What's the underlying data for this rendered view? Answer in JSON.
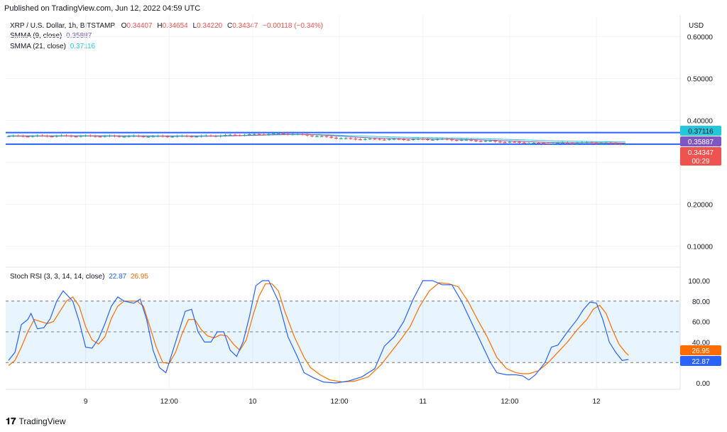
{
  "header": {
    "published": "Published on TradingView.com, Jun 12, 2022 04:59 UTC"
  },
  "symbol": {
    "name": "XRP / U.S. Dollar, 1h, BITSTAMP",
    "o_label": "O",
    "o": "0.34407",
    "h_label": "H",
    "h": "0.34654",
    "l_label": "L",
    "l": "0.34220",
    "c_label": "C",
    "c": "0.34347",
    "change": "−0.00118 (−0.34%)"
  },
  "indicators": {
    "smma9_label": "SMMA (9, close)",
    "smma9_value": "0.35887",
    "smma21_label": "SMMA (21, close)",
    "smma21_value": "0.37116",
    "stoch_label": "Stoch RSI (3, 3, 14, 14, close)",
    "stoch_k": "22.87",
    "stoch_d": "26.95"
  },
  "axis": {
    "currency": "USD"
  },
  "badges": {
    "smma21": "0.37116",
    "smma9": "0.35887",
    "price": "0.34347",
    "countdown": "00:29",
    "stoch_d": "26.95",
    "stoch_k": "22.87"
  },
  "footer": {
    "brand": "TradingView"
  },
  "colors": {
    "smma9": "#7e57c2",
    "smma21": "#26c6da",
    "stoch_k": "#2962ff",
    "stoch_d": "#ff6d00",
    "up": "#26a69a",
    "down": "#ef5350",
    "hline": "#2962ff"
  },
  "chart_data": [
    {
      "type": "candlestick",
      "title": "XRP / U.S. Dollar, 1h, BITSTAMP",
      "y_ticks": [
        "0.60000",
        "0.50000",
        "0.40000",
        "0.30000",
        "0.20000",
        "0.10000"
      ],
      "ylim": [
        0.05,
        0.65
      ],
      "x_ticks": [
        "9",
        "12:00",
        "10",
        "12:00",
        "11",
        "12:00",
        "12"
      ],
      "horizontal_lines": [
        0.371,
        0.3435
      ],
      "price_approx": [
        {
          "x": 0.0,
          "y": 0.3625
        },
        {
          "x": 0.5,
          "y": 0.363
        },
        {
          "x": 1.0,
          "y": 0.3625
        },
        {
          "x": 1.5,
          "y": 0.362
        },
        {
          "x": 2.0,
          "y": 0.3625
        },
        {
          "x": 2.5,
          "y": 0.3665
        },
        {
          "x": 2.8,
          "y": 0.369
        },
        {
          "x": 3.0,
          "y": 0.3665
        },
        {
          "x": 3.5,
          "y": 0.356
        },
        {
          "x": 4.0,
          "y": 0.355
        },
        {
          "x": 4.5,
          "y": 0.355
        },
        {
          "x": 5.0,
          "y": 0.35
        },
        {
          "x": 5.5,
          "y": 0.345
        },
        {
          "x": 6.0,
          "y": 0.347
        },
        {
          "x": 6.4,
          "y": 0.3435
        }
      ],
      "series": [
        {
          "name": "SMMA (9, close)",
          "last": 0.35887
        },
        {
          "name": "SMMA (21, close)",
          "last": 0.37116
        }
      ]
    },
    {
      "type": "line",
      "title": "Stoch RSI (3, 3, 14, 14, close)",
      "y_ticks": [
        "100.00",
        "80.00",
        "60.00",
        "40.00",
        "20.00",
        "0.00"
      ],
      "ylim": [
        0,
        100
      ],
      "bands": [
        20,
        50,
        80
      ],
      "series": [
        {
          "name": "%K",
          "points": [
            [
              0.0,
              22
            ],
            [
              0.1,
              30
            ],
            [
              0.2,
              57
            ],
            [
              0.3,
              62
            ],
            [
              0.35,
              68
            ],
            [
              0.45,
              53
            ],
            [
              0.55,
              54
            ],
            [
              0.65,
              63
            ],
            [
              0.75,
              80
            ],
            [
              0.85,
              90
            ],
            [
              1.0,
              80
            ],
            [
              1.1,
              60
            ],
            [
              1.2,
              35
            ],
            [
              1.3,
              34
            ],
            [
              1.4,
              43
            ],
            [
              1.5,
              58
            ],
            [
              1.6,
              75
            ],
            [
              1.7,
              84
            ],
            [
              1.8,
              80
            ],
            [
              1.95,
              78
            ],
            [
              2.05,
              82
            ],
            [
              2.15,
              62
            ],
            [
              2.25,
              32
            ],
            [
              2.35,
              15
            ],
            [
              2.45,
              10
            ],
            [
              2.55,
              30
            ],
            [
              2.65,
              50
            ],
            [
              2.75,
              70
            ],
            [
              2.85,
              72
            ],
            [
              2.95,
              50
            ],
            [
              3.05,
              40
            ],
            [
              3.15,
              40
            ],
            [
              3.25,
              50
            ],
            [
              3.35,
              50
            ],
            [
              3.45,
              32
            ],
            [
              3.55,
              26
            ],
            [
              3.65,
              40
            ],
            [
              3.75,
              65
            ],
            [
              3.85,
              95
            ],
            [
              3.95,
              100
            ],
            [
              4.05,
              100
            ],
            [
              4.2,
              80
            ],
            [
              4.35,
              45
            ],
            [
              4.5,
              25
            ],
            [
              4.6,
              10
            ],
            [
              4.75,
              5
            ],
            [
              4.9,
              1
            ],
            [
              5.1,
              0
            ],
            [
              5.3,
              2
            ],
            [
              5.5,
              6
            ],
            [
              5.7,
              14
            ],
            [
              5.85,
              36
            ],
            [
              6.0,
              45
            ],
            [
              6.15,
              60
            ],
            [
              6.3,
              82
            ],
            [
              6.45,
              100
            ],
            [
              6.6,
              100
            ],
            [
              6.75,
              96
            ],
            [
              6.9,
              96
            ],
            [
              7.05,
              80
            ],
            [
              7.2,
              60
            ],
            [
              7.35,
              40
            ],
            [
              7.5,
              20
            ],
            [
              7.6,
              10
            ],
            [
              7.75,
              8
            ],
            [
              7.9,
              8
            ],
            [
              8.0,
              7
            ],
            [
              8.1,
              3
            ],
            [
              8.2,
              8
            ],
            [
              8.35,
              20
            ],
            [
              8.45,
              35
            ],
            [
              8.55,
              37
            ],
            [
              8.7,
              50
            ],
            [
              8.85,
              62
            ],
            [
              8.95,
              72
            ],
            [
              9.05,
              79
            ],
            [
              9.15,
              78
            ],
            [
              9.25,
              62
            ],
            [
              9.35,
              40
            ],
            [
              9.45,
              30
            ],
            [
              9.55,
              22
            ],
            [
              9.65,
              23
            ]
          ]
        },
        {
          "name": "%D",
          "points": [
            [
              0.0,
              17
            ],
            [
              0.1,
              22
            ],
            [
              0.2,
              35
            ],
            [
              0.3,
              50
            ],
            [
              0.4,
              62
            ],
            [
              0.5,
              60
            ],
            [
              0.6,
              58
            ],
            [
              0.7,
              60
            ],
            [
              0.8,
              70
            ],
            [
              0.9,
              80
            ],
            [
              1.0,
              84
            ],
            [
              1.1,
              75
            ],
            [
              1.2,
              55
            ],
            [
              1.3,
              42
            ],
            [
              1.4,
              38
            ],
            [
              1.5,
              45
            ],
            [
              1.6,
              63
            ],
            [
              1.7,
              75
            ],
            [
              1.8,
              80
            ],
            [
              1.9,
              80
            ],
            [
              2.0,
              80
            ],
            [
              2.1,
              75
            ],
            [
              2.2,
              55
            ],
            [
              2.3,
              35
            ],
            [
              2.4,
              20
            ],
            [
              2.5,
              19
            ],
            [
              2.6,
              30
            ],
            [
              2.7,
              48
            ],
            [
              2.8,
              62
            ],
            [
              2.9,
              62
            ],
            [
              3.0,
              52
            ],
            [
              3.1,
              46
            ],
            [
              3.2,
              44
            ],
            [
              3.3,
              47
            ],
            [
              3.4,
              46
            ],
            [
              3.5,
              38
            ],
            [
              3.6,
              32
            ],
            [
              3.7,
              42
            ],
            [
              3.8,
              65
            ],
            [
              3.9,
              85
            ],
            [
              4.0,
              97
            ],
            [
              4.1,
              97
            ],
            [
              4.2,
              90
            ],
            [
              4.3,
              70
            ],
            [
              4.45,
              45
            ],
            [
              4.6,
              25
            ],
            [
              4.7,
              15
            ],
            [
              4.85,
              8
            ],
            [
              5.0,
              3
            ],
            [
              5.2,
              1
            ],
            [
              5.4,
              2
            ],
            [
              5.6,
              6
            ],
            [
              5.8,
              18
            ],
            [
              5.95,
              30
            ],
            [
              6.1,
              42
            ],
            [
              6.25,
              55
            ],
            [
              6.4,
              75
            ],
            [
              6.55,
              90
            ],
            [
              6.7,
              98
            ],
            [
              6.85,
              97
            ],
            [
              7.0,
              94
            ],
            [
              7.15,
              80
            ],
            [
              7.3,
              62
            ],
            [
              7.45,
              45
            ],
            [
              7.6,
              25
            ],
            [
              7.75,
              14
            ],
            [
              7.9,
              10
            ],
            [
              8.0,
              9
            ],
            [
              8.1,
              9
            ],
            [
              8.25,
              12
            ],
            [
              8.4,
              20
            ],
            [
              8.55,
              30
            ],
            [
              8.7,
              40
            ],
            [
              8.85,
              52
            ],
            [
              9.0,
              62
            ],
            [
              9.1,
              72
            ],
            [
              9.2,
              76
            ],
            [
              9.3,
              68
            ],
            [
              9.4,
              52
            ],
            [
              9.5,
              38
            ],
            [
              9.6,
              30
            ],
            [
              9.65,
              27
            ]
          ]
        }
      ]
    }
  ]
}
